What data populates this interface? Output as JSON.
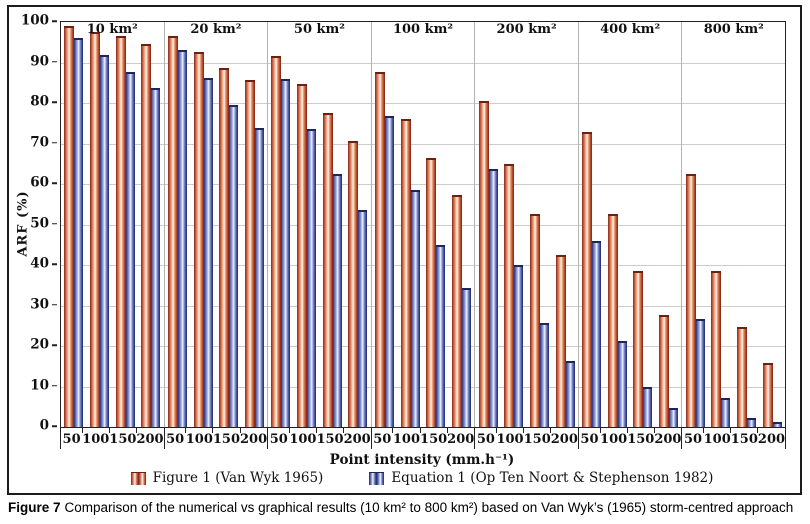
{
  "figure": {
    "caption_label": "Figure 7",
    "caption_text": "Comparison of the numerical vs graphical results (10 km² to 800 km²) based on Van Wyk’s (1965) storm-centred approach"
  },
  "chart_data": {
    "type": "bar",
    "title": "",
    "ylabel": "ARF (%)",
    "xlabel": "Point intensity (mm.h⁻¹)",
    "ylim": [
      0,
      100
    ],
    "ytick_step": 10,
    "grid": true,
    "legend_position": "bottom",
    "series": [
      {
        "name": "Figure 1 (Van Wyk 1965)",
        "color": "#c0563a"
      },
      {
        "name": "Equation 1 (Op Ten Noort & Stephenson 1982)",
        "color": "#5f6db4"
      }
    ],
    "groups": [
      {
        "area": "10 km²",
        "intensities": [
          50,
          100,
          150,
          200
        ],
        "figure1": [
          98.6,
          97.1,
          96.1,
          94.0
        ],
        "equation1": [
          95.6,
          91.4,
          87.1,
          83.3
        ]
      },
      {
        "area": "20 km²",
        "intensities": [
          50,
          100,
          150,
          200
        ],
        "figure1": [
          96.1,
          92.1,
          88.1,
          85.2
        ],
        "equation1": [
          92.5,
          85.7,
          79.1,
          73.3
        ]
      },
      {
        "area": "50 km²",
        "intensities": [
          50,
          100,
          150,
          200
        ],
        "figure1": [
          91.0,
          84.2,
          77.1,
          70.1
        ],
        "equation1": [
          85.4,
          73.0,
          62.1,
          53.0
        ]
      },
      {
        "area": "100 km²",
        "intensities": [
          50,
          100,
          150,
          200
        ],
        "figure1": [
          87.1,
          75.6,
          66.0,
          56.9
        ],
        "equation1": [
          76.3,
          58.1,
          44.4,
          33.8
        ]
      },
      {
        "area": "200 km²",
        "intensities": [
          50,
          100,
          150,
          200
        ],
        "figure1": [
          80.1,
          64.5,
          52.0,
          41.9
        ],
        "equation1": [
          63.1,
          39.4,
          25.1,
          15.7
        ]
      },
      {
        "area": "400 km²",
        "intensities": [
          50,
          100,
          150,
          200
        ],
        "figure1": [
          72.3,
          52.0,
          38.0,
          27.1
        ],
        "equation1": [
          45.4,
          20.8,
          9.4,
          4.3
        ]
      },
      {
        "area": "800 km²",
        "intensities": [
          50,
          100,
          150,
          200
        ],
        "figure1": [
          62.1,
          38.0,
          24.1,
          15.2
        ],
        "equation1": [
          26.1,
          6.6,
          1.8,
          0.7
        ]
      }
    ]
  }
}
